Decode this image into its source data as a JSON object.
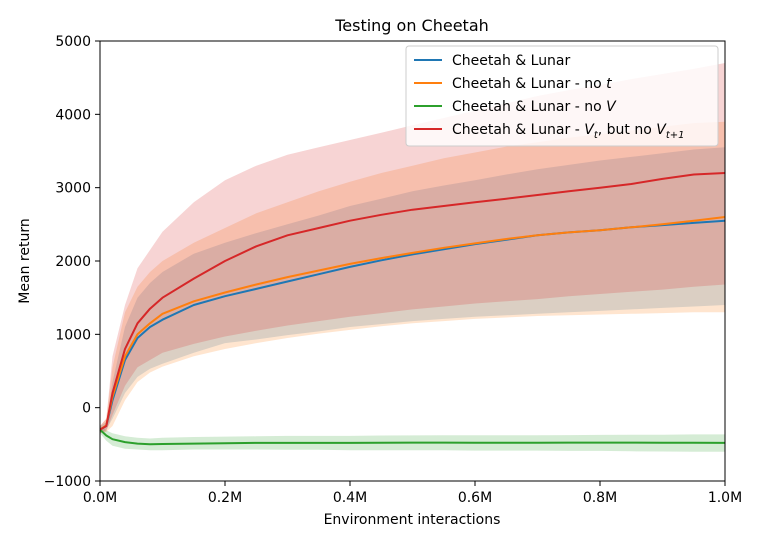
{
  "chart_data": {
    "type": "line",
    "title": "Testing on Cheetah",
    "xlabel": "Environment interactions",
    "ylabel": "Mean return",
    "xlim": [
      0,
      1000000
    ],
    "ylim": [
      -1000,
      5000
    ],
    "xticks": [
      0,
      200000,
      400000,
      600000,
      800000,
      1000000
    ],
    "xtick_labels": [
      "0.0M",
      "0.2M",
      "0.4M",
      "0.6M",
      "0.8M",
      "1.0M"
    ],
    "yticks": [
      -1000,
      0,
      1000,
      2000,
      3000,
      4000,
      5000
    ],
    "ytick_labels": [
      "−1000",
      "0",
      "1000",
      "2000",
      "3000",
      "4000",
      "5000"
    ],
    "legend_position": "top-right",
    "x": [
      0,
      10000,
      20000,
      40000,
      60000,
      80000,
      100000,
      150000,
      200000,
      250000,
      300000,
      350000,
      400000,
      450000,
      500000,
      550000,
      600000,
      650000,
      700000,
      750000,
      800000,
      850000,
      900000,
      950000,
      1000000
    ],
    "series": [
      {
        "name": "Cheetah & Lunar",
        "legend_main": "Cheetah & Lunar",
        "color": "#1f77b4",
        "values": [
          -300,
          -250,
          100,
          650,
          950,
          1100,
          1200,
          1400,
          1520,
          1620,
          1720,
          1820,
          1920,
          2010,
          2090,
          2160,
          2230,
          2290,
          2350,
          2390,
          2420,
          2460,
          2490,
          2520,
          2550
        ],
        "lower": [
          -350,
          -300,
          -150,
          200,
          420,
          530,
          600,
          750,
          880,
          930,
          990,
          1040,
          1100,
          1140,
          1180,
          1210,
          1240,
          1260,
          1280,
          1300,
          1320,
          1340,
          1360,
          1380,
          1400
        ],
        "upper": [
          -250,
          -200,
          350,
          1100,
          1500,
          1700,
          1850,
          2100,
          2250,
          2380,
          2500,
          2620,
          2750,
          2850,
          2950,
          3030,
          3100,
          3180,
          3250,
          3310,
          3370,
          3420,
          3470,
          3520,
          3550
        ]
      },
      {
        "name": "Cheetah & Lunar - no t",
        "legend_main": "Cheetah & Lunar - no ",
        "legend_italic": "t",
        "color": "#ff7f0e",
        "values": [
          -300,
          -240,
          150,
          700,
          1000,
          1150,
          1280,
          1450,
          1570,
          1680,
          1780,
          1870,
          1960,
          2040,
          2110,
          2180,
          2240,
          2300,
          2350,
          2390,
          2420,
          2460,
          2500,
          2550,
          2600
        ],
        "lower": [
          -350,
          -330,
          -250,
          100,
          350,
          480,
          560,
          700,
          800,
          880,
          950,
          1010,
          1060,
          1110,
          1150,
          1180,
          1210,
          1230,
          1250,
          1260,
          1270,
          1280,
          1290,
          1300,
          1300
        ],
        "upper": [
          -250,
          -150,
          550,
          1300,
          1650,
          1850,
          2000,
          2250,
          2450,
          2650,
          2800,
          2950,
          3080,
          3200,
          3300,
          3400,
          3480,
          3560,
          3620,
          3680,
          3730,
          3780,
          3830,
          3880,
          3900
        ]
      },
      {
        "name": "Cheetah & Lunar - no V",
        "legend_main": "Cheetah & Lunar - no ",
        "legend_italic": "V",
        "color": "#2ca02c",
        "values": [
          -300,
          -380,
          -430,
          -470,
          -490,
          -500,
          -495,
          -490,
          -485,
          -480,
          -480,
          -480,
          -480,
          -478,
          -476,
          -476,
          -478,
          -478,
          -478,
          -477,
          -476,
          -476,
          -478,
          -478,
          -480
        ],
        "lower": [
          -350,
          -450,
          -520,
          -560,
          -570,
          -580,
          -580,
          -570,
          -570,
          -570,
          -575,
          -575,
          -580,
          -580,
          -580,
          -580,
          -585,
          -585,
          -585,
          -590,
          -590,
          -595,
          -598,
          -600,
          -600
        ],
        "upper": [
          -250,
          -310,
          -350,
          -390,
          -410,
          -420,
          -410,
          -400,
          -395,
          -390,
          -385,
          -385,
          -385,
          -380,
          -378,
          -376,
          -375,
          -375,
          -375,
          -374,
          -372,
          -370,
          -368,
          -365,
          -365
        ]
      },
      {
        "name": "Cheetah & Lunar - Vt, but no Vt+1",
        "legend_main": "Cheetah & Lunar - ",
        "legend_italic": "V",
        "legend_sub": "t",
        "legend_mid": ", but no ",
        "legend_italic2": "V",
        "legend_sub2": "t+1",
        "color": "#d62728",
        "values": [
          -300,
          -250,
          200,
          800,
          1150,
          1350,
          1500,
          1760,
          2000,
          2200,
          2350,
          2450,
          2550,
          2630,
          2700,
          2750,
          2800,
          2850,
          2900,
          2950,
          3000,
          3050,
          3120,
          3180,
          3200
        ],
        "lower": [
          -350,
          -320,
          -100,
          300,
          550,
          650,
          750,
          870,
          970,
          1050,
          1120,
          1180,
          1240,
          1290,
          1340,
          1380,
          1420,
          1450,
          1480,
          1520,
          1550,
          1580,
          1610,
          1650,
          1680
        ],
        "upper": [
          -250,
          -150,
          700,
          1400,
          1900,
          2150,
          2400,
          2800,
          3100,
          3300,
          3450,
          3550,
          3650,
          3750,
          3850,
          3950,
          4050,
          4150,
          4250,
          4330,
          4400,
          4480,
          4550,
          4620,
          4700
        ]
      }
    ]
  }
}
